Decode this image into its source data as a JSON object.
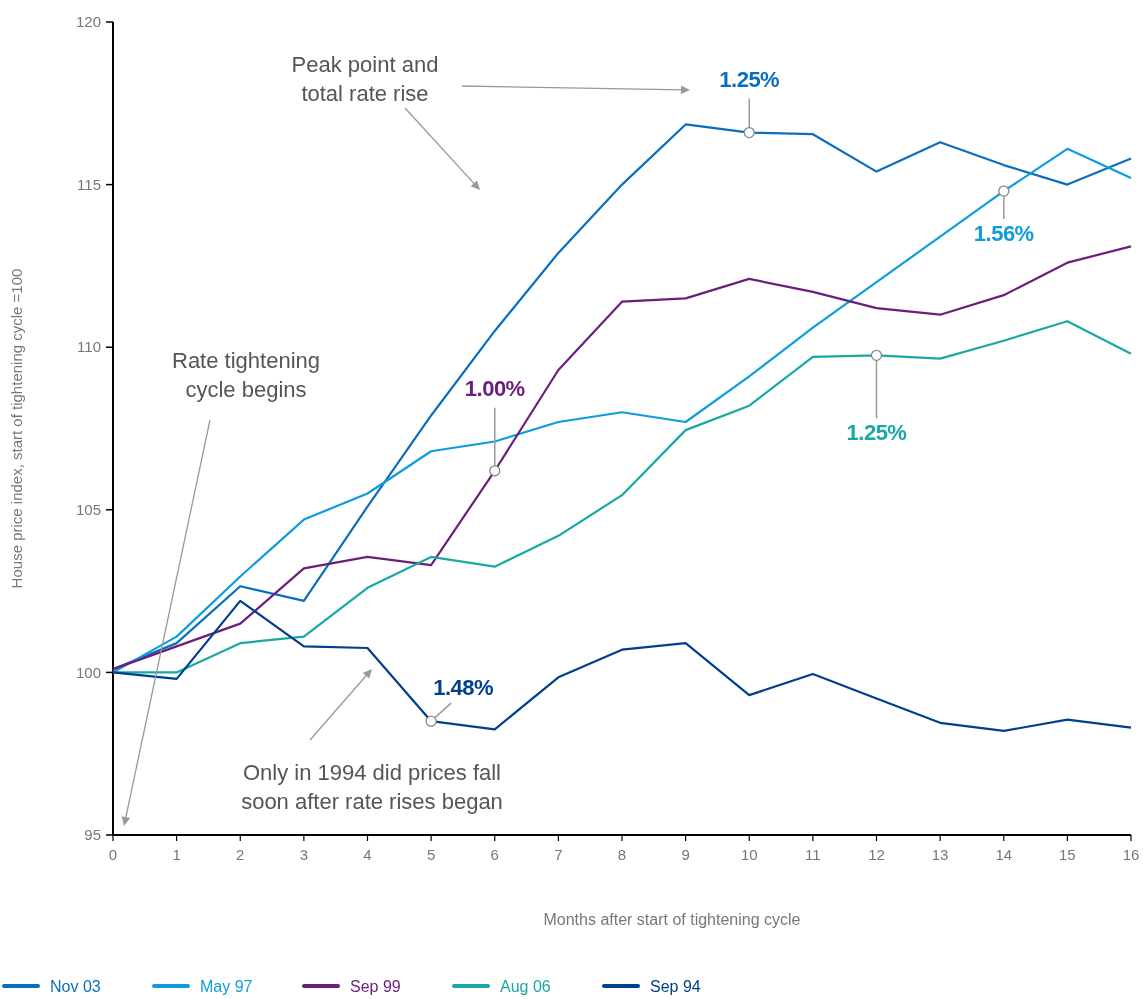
{
  "chart_data": {
    "type": "line",
    "xlabel": "Months after start of tightening cycle",
    "ylabel": "House price index, start of tightening cycle =100",
    "x": [
      0,
      1,
      2,
      3,
      4,
      5,
      6,
      7,
      8,
      9,
      10,
      11,
      12,
      13,
      14,
      15,
      16
    ],
    "xlim": [
      0,
      16
    ],
    "xticks": [
      0,
      1,
      2,
      3,
      4,
      5,
      6,
      7,
      8,
      9,
      10,
      11,
      12,
      13,
      14,
      15,
      16
    ],
    "ylim": [
      95,
      120
    ],
    "yticks": [
      95,
      100,
      105,
      110,
      115,
      120
    ],
    "grid": false,
    "legend": "bottom",
    "marker": "none",
    "line_style": "solid",
    "series": [
      {
        "name": "Nov 03",
        "color": "#0a6ebd",
        "values": [
          100.1,
          100.9,
          102.65,
          102.2,
          105.1,
          107.9,
          110.5,
          112.9,
          115.0,
          116.85,
          116.6,
          116.55,
          115.4,
          116.3,
          115.6,
          115.0,
          115.8
        ]
      },
      {
        "name": "May 97",
        "color": "#0d9ddb",
        "values": [
          100.0,
          101.1,
          102.95,
          104.7,
          105.5,
          106.8,
          107.1,
          107.7,
          108.0,
          107.7,
          109.1,
          110.6,
          112.0,
          113.4,
          114.8,
          116.1,
          115.2
        ]
      },
      {
        "name": "Sep 99",
        "color": "#6b1f7c",
        "values": [
          100.1,
          100.8,
          101.5,
          103.2,
          103.55,
          103.3,
          106.2,
          109.3,
          111.4,
          111.5,
          112.1,
          111.7,
          111.2,
          111.0,
          111.6,
          112.6,
          113.1
        ]
      },
      {
        "name": "Aug 06",
        "color": "#1aa8a4",
        "values": [
          100.0,
          100.0,
          100.9,
          101.1,
          102.6,
          103.55,
          103.25,
          104.2,
          105.45,
          107.45,
          108.2,
          109.7,
          109.75,
          109.65,
          110.2,
          110.8,
          109.8
        ]
      },
      {
        "name": "Sep 94",
        "color": "#003f8c",
        "values": [
          100.0,
          99.8,
          102.2,
          100.8,
          100.75,
          98.5,
          98.25,
          99.85,
          100.7,
          100.9,
          99.3,
          99.95,
          99.2,
          98.45,
          98.2,
          98.55,
          98.3
        ]
      }
    ],
    "annotations": [
      "Peak point and total rate rise",
      "Rate tightening cycle begins",
      "Only in 1994 did prices fall soon after rate rises began",
      {
        "text": "1.25%",
        "x": 10,
        "y": 116.6
      },
      {
        "text": "1.00%",
        "x": 6,
        "y": 106.2
      },
      {
        "text": "1.56%",
        "x": 14,
        "y": 114.8
      },
      {
        "text": "1.25%",
        "x": 12,
        "y": 109.75
      },
      {
        "text": "1.48%",
        "x": 5,
        "y": 98.5
      }
    ]
  }
}
